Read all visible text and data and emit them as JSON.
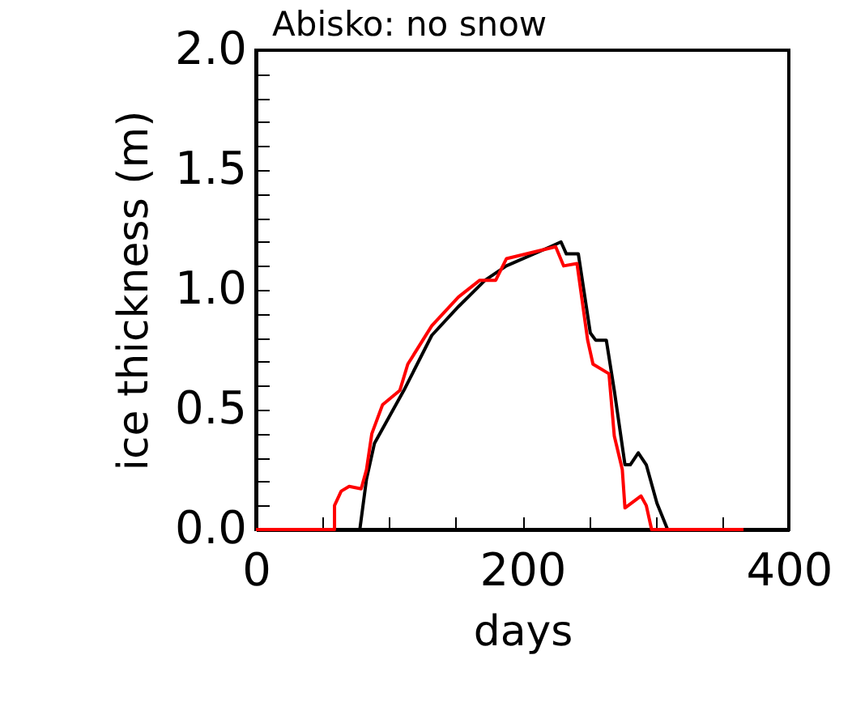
{
  "chart_data": {
    "type": "line",
    "title": "Abisko: no snow",
    "xlabel": "days",
    "ylabel": "ice thickness (m)",
    "xlim": [
      0,
      400
    ],
    "ylim": [
      0,
      2
    ],
    "xticks": [
      0,
      {
        "value": 50,
        "label": null
      },
      {
        "value": 100,
        "label": null
      },
      {
        "value": 150,
        "label": null
      },
      200,
      {
        "value": 250,
        "label": null
      },
      {
        "value": 300,
        "label": null
      },
      {
        "value": 350,
        "label": null
      },
      400
    ],
    "yticks": [
      {
        "value": 0,
        "label": "0.0"
      },
      {
        "value": 0.1,
        "label": null
      },
      {
        "value": 0.2,
        "label": null
      },
      {
        "value": 0.3,
        "label": null
      },
      {
        "value": 0.4,
        "label": null
      },
      0.5,
      {
        "value": 0.6,
        "label": null
      },
      {
        "value": 0.7,
        "label": null
      },
      {
        "value": 0.8,
        "label": null
      },
      {
        "value": 0.9,
        "label": null
      },
      {
        "value": 1,
        "label": "1.0"
      },
      {
        "value": 1.1,
        "label": null
      },
      {
        "value": 1.2,
        "label": null
      },
      {
        "value": 1.3,
        "label": null
      },
      {
        "value": 1.4,
        "label": null
      },
      1.5,
      {
        "value": 1.6,
        "label": null
      },
      {
        "value": 1.7,
        "label": null
      },
      {
        "value": 1.8,
        "label": null
      },
      {
        "value": 1.9,
        "label": null
      },
      {
        "value": 2,
        "label": "2.0"
      }
    ],
    "grid": false,
    "legend": false,
    "marker": "none",
    "line_style": "solid",
    "series": [
      {
        "color": "#000000",
        "x": [
          0,
          78,
          83,
          89,
          95,
          111,
          132,
          152,
          172,
          188,
          221,
          229,
          233,
          242,
          251,
          255,
          263,
          269,
          277,
          281,
          287,
          293,
          301,
          309,
          366
        ],
        "values": [
          0,
          0,
          0.21,
          0.36,
          0.42,
          0.58,
          0.81,
          0.93,
          1.04,
          1.1,
          1.18,
          1.2,
          1.15,
          1.15,
          0.82,
          0.79,
          0.79,
          0.58,
          0.27,
          0.27,
          0.32,
          0.27,
          0.11,
          0,
          0
        ]
      },
      {
        "color": "#ff0000",
        "x": [
          0,
          59,
          59,
          64,
          70,
          79,
          83,
          87,
          95,
          108,
          114,
          132,
          152,
          168,
          180,
          188,
          225,
          231,
          241,
          249,
          253,
          265,
          269,
          275,
          277,
          289,
          293,
          297,
          366
        ],
        "values": [
          0,
          0,
          0.1,
          0.16,
          0.18,
          0.17,
          0.25,
          0.4,
          0.52,
          0.58,
          0.69,
          0.85,
          0.97,
          1.04,
          1.04,
          1.13,
          1.18,
          1.1,
          1.11,
          0.79,
          0.69,
          0.65,
          0.39,
          0.25,
          0.09,
          0.14,
          0.1,
          0,
          0
        ]
      }
    ]
  }
}
